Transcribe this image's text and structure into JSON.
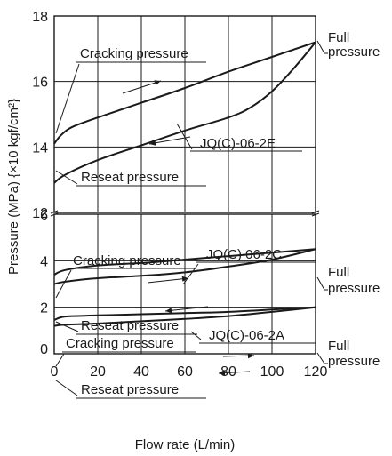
{
  "chart_data": {
    "type": "line",
    "xlabel": "Flow rate (L/min)",
    "ylabel": "Pressure (MPa) {×10 kgf/cm²}",
    "xlim": [
      0,
      120
    ],
    "x_ticks": [
      "0",
      "20",
      "40",
      "60",
      "80",
      "100",
      "120"
    ],
    "y_ticks_upper": [
      "12",
      "14",
      "16",
      "18"
    ],
    "y_ticks_lower": [
      "0",
      "2",
      "4",
      "6"
    ],
    "y_break": [
      6,
      12
    ],
    "grid": true,
    "series": [
      {
        "name": "JQ(C)-06-2E",
        "cracking": [
          [
            0,
            14.1
          ],
          [
            3,
            14.35
          ],
          [
            8,
            14.6
          ],
          [
            20,
            14.9
          ],
          [
            40,
            15.35
          ],
          [
            60,
            15.8
          ],
          [
            80,
            16.3
          ],
          [
            100,
            16.75
          ],
          [
            120,
            17.2
          ]
        ],
        "reseat": [
          [
            0,
            12.9
          ],
          [
            5,
            13.15
          ],
          [
            20,
            13.6
          ],
          [
            40,
            14.05
          ],
          [
            60,
            14.5
          ],
          [
            80,
            14.9
          ],
          [
            90,
            15.2
          ],
          [
            100,
            15.7
          ],
          [
            110,
            16.4
          ],
          [
            120,
            17.2
          ]
        ]
      },
      {
        "name": "JQ(C) 06-2C",
        "cracking": [
          [
            0,
            3.4
          ],
          [
            5,
            3.6
          ],
          [
            20,
            3.8
          ],
          [
            40,
            3.9
          ],
          [
            60,
            4.05
          ],
          [
            80,
            4.2
          ],
          [
            100,
            4.35
          ],
          [
            120,
            4.5
          ]
        ],
        "reseat": [
          [
            0,
            3.0
          ],
          [
            5,
            3.1
          ],
          [
            20,
            3.25
          ],
          [
            40,
            3.35
          ],
          [
            60,
            3.5
          ],
          [
            80,
            3.75
          ],
          [
            100,
            4.05
          ],
          [
            120,
            4.5
          ]
        ]
      },
      {
        "name": "JQ(C)-06-2A",
        "cracking": [
          [
            0,
            1.45
          ],
          [
            5,
            1.6
          ],
          [
            20,
            1.65
          ],
          [
            40,
            1.7
          ],
          [
            60,
            1.75
          ],
          [
            80,
            1.8
          ],
          [
            100,
            1.9
          ],
          [
            120,
            2.0
          ]
        ],
        "reseat": [
          [
            0,
            1.2
          ],
          [
            5,
            1.25
          ],
          [
            20,
            1.3
          ],
          [
            40,
            1.4
          ],
          [
            60,
            1.5
          ],
          [
            80,
            1.62
          ],
          [
            100,
            1.8
          ],
          [
            120,
            2.0
          ]
        ]
      }
    ],
    "annotations": {
      "cracking": "Cracking pressure",
      "reseat": "Reseat pressure",
      "full_1": "Full",
      "full_2": "pressure"
    }
  }
}
